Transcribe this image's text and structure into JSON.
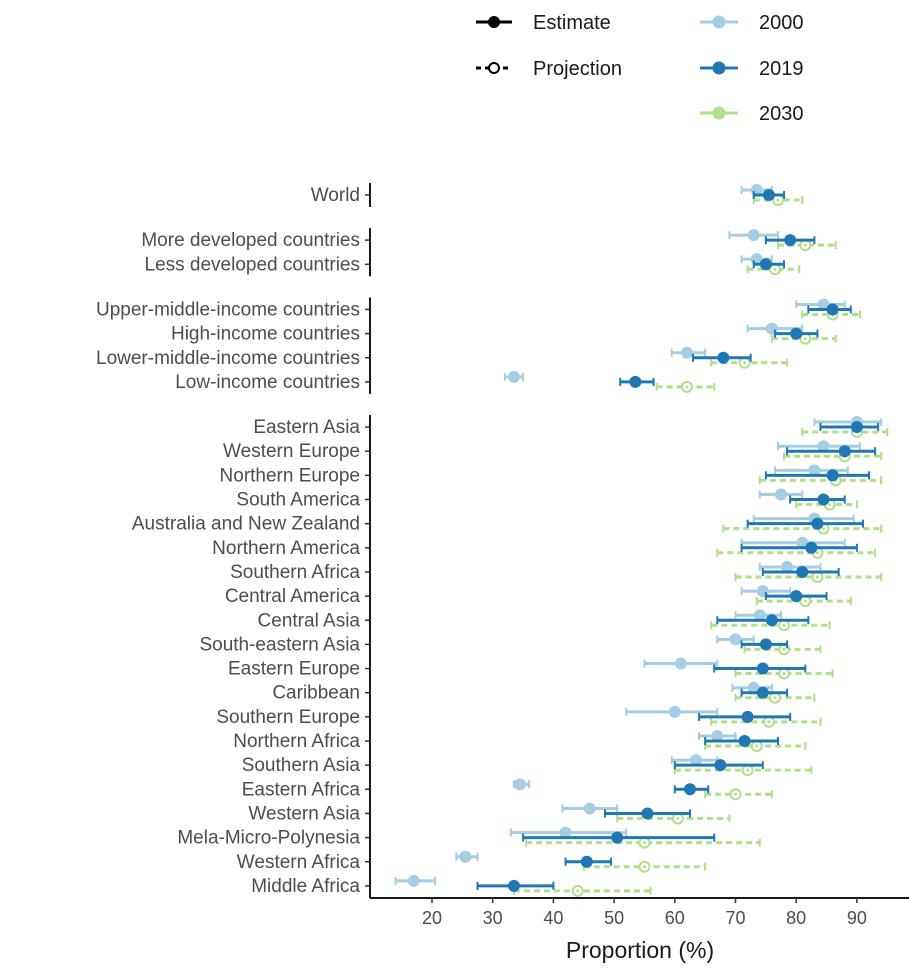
{
  "chart_data": {
    "type": "dot-range",
    "xlabel": "Proportion (%)",
    "xlim": [
      12,
      97
    ],
    "x_ticks": [
      20,
      30,
      40,
      50,
      60,
      70,
      80,
      90
    ],
    "grid": false,
    "legend": {
      "line_types": [
        {
          "label": "Estimate",
          "style": "solid-filled"
        },
        {
          "label": "Projection",
          "style": "dashed-open"
        }
      ],
      "years": [
        {
          "label": "2000",
          "color": "#a6cee3"
        },
        {
          "label": "2019",
          "color": "#1f78b4"
        },
        {
          "label": "2030",
          "color": "#b2df8a"
        }
      ]
    },
    "groups": [
      {
        "categories": [
          {
            "name": "World",
            "v2000": [
              73.5,
              71,
              76
            ],
            "v2019": [
              75.5,
              73,
              78
            ],
            "v2030": [
              77,
              73,
              81
            ]
          }
        ]
      },
      {
        "categories": [
          {
            "name": "More developed countries",
            "v2000": [
              73,
              69,
              77
            ],
            "v2019": [
              79,
              75,
              83
            ],
            "v2030": [
              81.5,
              77,
              86.5
            ]
          },
          {
            "name": "Less developed countries",
            "v2000": [
              73.5,
              71,
              76
            ],
            "v2019": [
              75,
              73,
              78
            ],
            "v2030": [
              76.5,
              72,
              80.5
            ]
          }
        ]
      },
      {
        "categories": [
          {
            "name": "Upper-middle-income countries",
            "v2000": [
              84.5,
              80,
              88
            ],
            "v2019": [
              86,
              82,
              89
            ],
            "v2030": [
              86,
              81,
              90.5
            ]
          },
          {
            "name": "High-income countries",
            "v2000": [
              76,
              72,
              81
            ],
            "v2019": [
              80,
              76.5,
              83.5
            ],
            "v2030": [
              81.5,
              76,
              86.5
            ]
          },
          {
            "name": "Lower-middle-income countries",
            "v2000": [
              62,
              59.5,
              65
            ],
            "v2019": [
              68,
              63,
              72.5
            ],
            "v2030": [
              71.5,
              66,
              78.5
            ]
          },
          {
            "name": "Low-income countries",
            "v2000": [
              33.5,
              32,
              35
            ],
            "v2019": [
              53.5,
              51,
              56.5
            ],
            "v2030": [
              62,
              57,
              66.5
            ]
          }
        ]
      },
      {
        "categories": [
          {
            "name": "Eastern Asia",
            "v2000": [
              90,
              83,
              94
            ],
            "v2019": [
              90,
              84,
              93.5
            ],
            "v2030": [
              90,
              81,
              95
            ]
          },
          {
            "name": "Western Europe",
            "v2000": [
              84.5,
              77,
              90.5
            ],
            "v2019": [
              88,
              78.5,
              93
            ],
            "v2030": [
              88,
              78,
              94
            ]
          },
          {
            "name": "Northern Europe",
            "v2000": [
              83,
              76.5,
              88.5
            ],
            "v2019": [
              86,
              75,
              92
            ],
            "v2030": [
              86.5,
              74,
              94
            ]
          },
          {
            "name": "South America",
            "v2000": [
              77.5,
              74,
              81
            ],
            "v2019": [
              84.5,
              79,
              88
            ],
            "v2030": [
              85.5,
              80,
              90
            ]
          },
          {
            "name": "Australia and New Zealand",
            "v2000": [
              83,
              73,
              89.5
            ],
            "v2019": [
              83.5,
              72,
              91
            ],
            "v2030": [
              84.5,
              68,
              94
            ]
          },
          {
            "name": "Northern America",
            "v2000": [
              81,
              71,
              88
            ],
            "v2019": [
              82.5,
              71,
              90
            ],
            "v2030": [
              83.5,
              67,
              93
            ]
          },
          {
            "name": "Southern Africa",
            "v2000": [
              78.5,
              74,
              84
            ],
            "v2019": [
              81,
              74.5,
              87
            ],
            "v2030": [
              83.5,
              70,
              94
            ]
          },
          {
            "name": "Central America",
            "v2000": [
              74.5,
              71,
              79
            ],
            "v2019": [
              80,
              75,
              85
            ],
            "v2030": [
              81.5,
              73.5,
              89
            ]
          },
          {
            "name": "Central Asia",
            "v2000": [
              74,
              70,
              77.5
            ],
            "v2019": [
              76,
              67,
              82
            ],
            "v2030": [
              78,
              66,
              85.5
            ]
          },
          {
            "name": "South-eastern Asia",
            "v2000": [
              70,
              67,
              73
            ],
            "v2019": [
              75,
              71,
              78.5
            ],
            "v2030": [
              78,
              71.5,
              84
            ]
          },
          {
            "name": "Eastern Europe",
            "v2000": [
              61,
              55,
              67
            ],
            "v2019": [
              74.5,
              66.5,
              81.5
            ],
            "v2030": [
              78,
              70,
              86
            ]
          },
          {
            "name": "Caribbean",
            "v2000": [
              73,
              69.5,
              76
            ],
            "v2019": [
              74.5,
              71,
              78.5
            ],
            "v2030": [
              76.5,
              70,
              83
            ]
          },
          {
            "name": "Southern Europe",
            "v2000": [
              60,
              52,
              67
            ],
            "v2019": [
              72,
              64,
              79
            ],
            "v2030": [
              75.5,
              66,
              84
            ]
          },
          {
            "name": "Northern Africa",
            "v2000": [
              67,
              64,
              70
            ],
            "v2019": [
              71.5,
              65,
              77
            ],
            "v2030": [
              73.5,
              65,
              81.5
            ]
          },
          {
            "name": "Southern Asia",
            "v2000": [
              63.5,
              59.5,
              67
            ],
            "v2019": [
              67.5,
              60,
              74.5
            ],
            "v2030": [
              72,
              60,
              82.5
            ]
          },
          {
            "name": "Eastern Africa",
            "v2000": [
              34.5,
              33.5,
              36
            ],
            "v2019": [
              62.5,
              60,
              65.5
            ],
            "v2030": [
              70,
              65,
              76
            ]
          },
          {
            "name": "Western Asia",
            "v2000": [
              46,
              41.5,
              50.5
            ],
            "v2019": [
              55.5,
              48.5,
              62.5
            ],
            "v2030": [
              60.5,
              50.5,
              69
            ]
          },
          {
            "name": "Mela-Micro-Polynesia",
            "v2000": [
              42,
              33,
              52
            ],
            "v2019": [
              50.5,
              35,
              66.5
            ],
            "v2030": [
              55,
              35.5,
              74
            ]
          },
          {
            "name": "Western Africa",
            "v2000": [
              25.5,
              24,
              27.5
            ],
            "v2019": [
              45.5,
              42,
              49.5
            ],
            "v2030": [
              55,
              45,
              65
            ]
          },
          {
            "name": "Middle Africa",
            "v2000": [
              17,
              14,
              20.5
            ],
            "v2019": [
              33.5,
              27.5,
              40
            ],
            "v2030": [
              44,
              33.5,
              56
            ]
          }
        ]
      }
    ]
  }
}
